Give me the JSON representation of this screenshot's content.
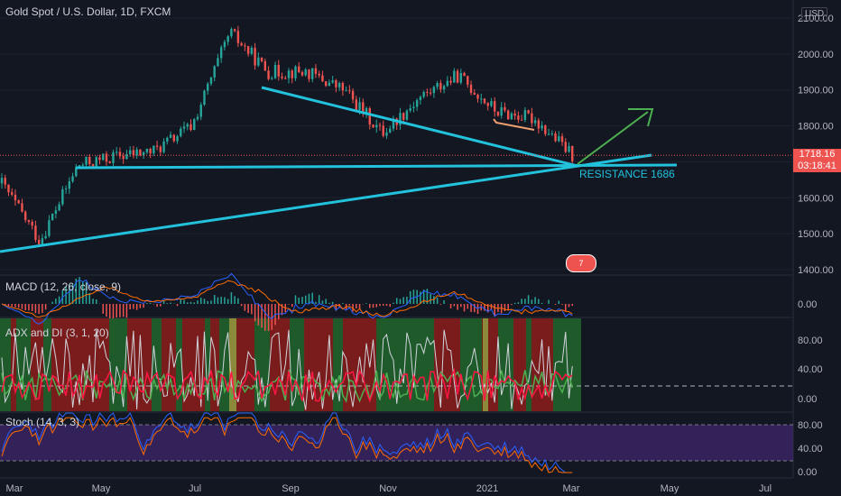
{
  "header": {
    "symbol": "Gold Spot / U.S. Dollar, 1D, FXCM",
    "currency": "USD"
  },
  "price_tag": {
    "price": "1718.16",
    "countdown": "03:18:41"
  },
  "annotation": {
    "resistance_label": "RESISTANCE 1686",
    "badge_text": "7"
  },
  "indicators": {
    "macd_label": "MACD (12, 26, close, 9)",
    "adx_label": "ADX and DI (3, 1, 20)",
    "stoch_label": "Stoch (14, 3, 3)"
  },
  "axes": {
    "price_ticks": [
      "2100.00",
      "2000.00",
      "1900.00",
      "1800.00",
      "1700.00",
      "1600.00",
      "1500.00",
      "1400.00"
    ],
    "macd_ticks": [
      "0.00"
    ],
    "adx_ticks": [
      "80.00",
      "40.00",
      "0.00"
    ],
    "stoch_ticks": [
      "80.00",
      "40.00",
      "0.00"
    ],
    "time_labels": [
      "Mar",
      "May",
      "Jul",
      "Sep",
      "Nov",
      "2021",
      "Mar",
      "May",
      "Jul"
    ]
  },
  "colors": {
    "background": "#131722",
    "up": "#26a69a",
    "down": "#ef5350",
    "trendline": "#22c1dc",
    "arrow": "#4caf50",
    "pattern": "#f0a070",
    "stoch_band": "#4a2a80"
  },
  "chart_data": {
    "type": "candlestick",
    "symbol": "Gold Spot / U.S. Dollar",
    "interval": "1D",
    "price_range": [
      1400,
      2100
    ],
    "key_levels": {
      "resistance": 1686,
      "last_price": 1718.16
    },
    "approx_closes": [
      {
        "date": "Mar",
        "close": 1640
      },
      {
        "date": "Mar-mid",
        "close": 1480
      },
      {
        "date": "Apr",
        "close": 1690
      },
      {
        "date": "May",
        "close": 1715
      },
      {
        "date": "Jun",
        "close": 1730
      },
      {
        "date": "Jul",
        "close": 1800
      },
      {
        "date": "Aug-early",
        "close": 2060
      },
      {
        "date": "Aug-mid",
        "close": 1950
      },
      {
        "date": "Sep",
        "close": 1950
      },
      {
        "date": "Oct",
        "close": 1900
      },
      {
        "date": "Nov",
        "close": 1780
      },
      {
        "date": "Dec",
        "close": 1880
      },
      {
        "date": "2021",
        "close": 1940
      },
      {
        "date": "Jan-mid",
        "close": 1840
      },
      {
        "date": "Feb",
        "close": 1820
      },
      {
        "date": "Mar",
        "close": 1718
      }
    ]
  }
}
